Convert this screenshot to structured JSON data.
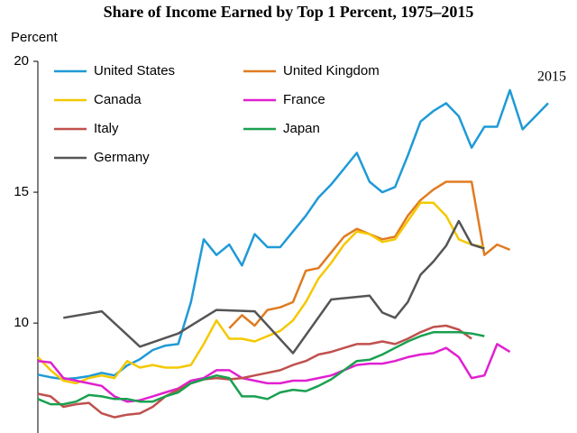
{
  "chart_data": {
    "type": "line",
    "title": "Share of Income Earned by Top 1 Percent, 1975–2015",
    "y_label": "Percent",
    "annotation": "2015",
    "xlim": [
      1975,
      2015
    ],
    "ylim": [
      5.8,
      20
    ],
    "yticks": [
      10,
      15,
      20
    ],
    "series": [
      {
        "name": "United States",
        "color": "#1f9ad6",
        "x": [
          1975,
          1976,
          1977,
          1978,
          1979,
          1980,
          1981,
          1982,
          1983,
          1984,
          1985,
          1986,
          1987,
          1988,
          1989,
          1990,
          1991,
          1992,
          1993,
          1994,
          1995,
          1996,
          1997,
          1998,
          1999,
          2000,
          2001,
          2002,
          2003,
          2004,
          2005,
          2006,
          2007,
          2008,
          2009,
          2010,
          2011,
          2012,
          2013,
          2014,
          2015
        ],
        "values": [
          8.03,
          7.93,
          7.86,
          7.9,
          7.97,
          8.1,
          8.0,
          8.38,
          8.62,
          8.97,
          9.14,
          9.2,
          10.8,
          13.2,
          12.6,
          13.0,
          12.2,
          13.4,
          12.9,
          12.9,
          13.5,
          14.1,
          14.8,
          15.3,
          15.9,
          16.5,
          15.4,
          15.0,
          15.2,
          16.4,
          17.7,
          18.1,
          18.4,
          17.9,
          16.7,
          17.5,
          17.5,
          18.9,
          17.4,
          17.9,
          18.4
        ]
      },
      {
        "name": "United Kingdom",
        "color": "#e07b20",
        "x": [
          1990,
          1991,
          1992,
          1993,
          1994,
          1995,
          1996,
          1997,
          1998,
          1999,
          2000,
          2001,
          2002,
          2003,
          2004,
          2005,
          2006,
          2007,
          2008,
          2009,
          2010,
          2011,
          2012
        ],
        "values": [
          9.8,
          10.3,
          9.9,
          10.5,
          10.6,
          10.8,
          12.0,
          12.1,
          12.7,
          13.3,
          13.6,
          13.4,
          13.2,
          13.3,
          14.1,
          14.7,
          15.1,
          15.4,
          15.4,
          15.4,
          12.6,
          13.0,
          12.8
        ]
      },
      {
        "name": "Canada",
        "color": "#f5c800",
        "x": [
          1975,
          1976,
          1977,
          1978,
          1979,
          1980,
          1981,
          1982,
          1983,
          1984,
          1985,
          1986,
          1987,
          1988,
          1989,
          1990,
          1991,
          1992,
          1993,
          1994,
          1995,
          1996,
          1997,
          1998,
          1999,
          2000,
          2001,
          2002,
          2003,
          2004,
          2005,
          2006,
          2007,
          2008,
          2009,
          2010
        ],
        "values": [
          8.7,
          8.2,
          7.8,
          7.7,
          7.9,
          8.0,
          7.9,
          8.55,
          8.3,
          8.4,
          8.3,
          8.3,
          8.4,
          9.2,
          10.1,
          9.4,
          9.4,
          9.3,
          9.5,
          9.7,
          10.1,
          10.8,
          11.7,
          12.3,
          13.0,
          13.5,
          13.4,
          13.1,
          13.2,
          13.9,
          14.6,
          14.6,
          14.1,
          13.2,
          13.0,
          12.9
        ]
      },
      {
        "name": "France",
        "color": "#e020d0",
        "x": [
          1975,
          1976,
          1977,
          1978,
          1979,
          1980,
          1981,
          1982,
          1983,
          1984,
          1985,
          1986,
          1987,
          1988,
          1989,
          1990,
          1991,
          1992,
          1993,
          1994,
          1995,
          1996,
          1997,
          1998,
          1999,
          2000,
          2001,
          2002,
          2003,
          2004,
          2005,
          2006,
          2007,
          2008,
          2009,
          2010,
          2011,
          2012
        ],
        "values": [
          8.55,
          8.5,
          7.9,
          7.8,
          7.7,
          7.6,
          7.2,
          7.0,
          7.05,
          7.2,
          7.35,
          7.5,
          7.8,
          7.9,
          8.2,
          8.2,
          7.9,
          7.8,
          7.7,
          7.7,
          7.8,
          7.8,
          7.9,
          8.0,
          8.2,
          8.4,
          8.45,
          8.45,
          8.55,
          8.7,
          8.8,
          8.85,
          9.05,
          8.7,
          7.9,
          8.0,
          9.2,
          8.9
        ]
      },
      {
        "name": "Italy",
        "color": "#c0504d",
        "x": [
          1975,
          1976,
          1977,
          1978,
          1979,
          1980,
          1981,
          1982,
          1983,
          1984,
          1985,
          1986,
          1987,
          1988,
          1989,
          1990,
          1991,
          1992,
          1993,
          1994,
          1995,
          1996,
          1997,
          1998,
          1999,
          2000,
          2001,
          2002,
          2003,
          2004,
          2005,
          2006,
          2007,
          2008,
          2009
        ],
        "values": [
          7.3,
          7.2,
          6.8,
          6.9,
          6.95,
          6.55,
          6.4,
          6.5,
          6.55,
          6.8,
          7.2,
          7.45,
          7.7,
          7.85,
          7.9,
          7.85,
          7.9,
          8.0,
          8.1,
          8.2,
          8.4,
          8.55,
          8.8,
          8.9,
          9.05,
          9.2,
          9.2,
          9.3,
          9.2,
          9.4,
          9.65,
          9.85,
          9.9,
          9.75,
          9.4
        ]
      },
      {
        "name": "Japan",
        "color": "#1aa050",
        "x": [
          1975,
          1976,
          1977,
          1978,
          1979,
          1980,
          1981,
          1982,
          1983,
          1984,
          1985,
          1986,
          1987,
          1988,
          1989,
          1990,
          1991,
          1992,
          1993,
          1994,
          1995,
          1996,
          1997,
          1998,
          1999,
          2000,
          2001,
          2002,
          2003,
          2004,
          2005,
          2006,
          2007,
          2008,
          2009,
          2010
        ],
        "values": [
          7.1,
          6.9,
          6.9,
          7.0,
          7.25,
          7.2,
          7.1,
          7.1,
          7.0,
          7.0,
          7.2,
          7.35,
          7.7,
          7.85,
          8.0,
          7.9,
          7.2,
          7.2,
          7.1,
          7.35,
          7.45,
          7.4,
          7.6,
          7.85,
          8.2,
          8.55,
          8.6,
          8.8,
          9.05,
          9.3,
          9.5,
          9.65,
          9.65,
          9.65,
          9.6,
          9.5
        ]
      },
      {
        "name": "Germany",
        "color": "#555555",
        "x": [
          1977,
          1980,
          1983,
          1986,
          1989,
          1992,
          1995,
          1998,
          2001,
          2002,
          2003,
          2004,
          2005,
          2006,
          2007,
          2008,
          2009,
          2010
        ],
        "values": [
          10.2,
          10.45,
          9.1,
          9.6,
          10.5,
          10.45,
          8.85,
          10.9,
          11.05,
          10.4,
          10.2,
          10.8,
          11.85,
          12.35,
          12.95,
          13.9,
          13.0,
          12.85
        ]
      }
    ]
  }
}
